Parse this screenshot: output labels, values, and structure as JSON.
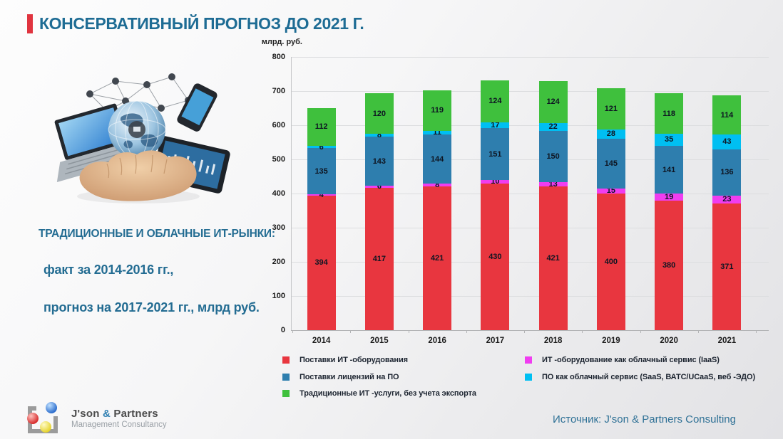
{
  "slide": {
    "title": "КОНСЕРВАТИВНЫЙ ПРОГНОЗ ДО 2021 Г."
  },
  "left_text": {
    "lines": [
      "ТРАДИЦИОННЫЕ И ОБЛАЧНЫЕ ИТ-РЫНКИ:",
      "факт за 2014-2016 гг.,",
      "прогноз на 2017-2021 гг., млрд руб."
    ]
  },
  "chart_data": {
    "type": "bar",
    "stacked": true,
    "unit_label": "млрд. руб.",
    "categories": [
      "2014",
      "2015",
      "2016",
      "2017",
      "2018",
      "2019",
      "2020",
      "2021"
    ],
    "series": [
      {
        "name": "Поставки ИТ -оборудования",
        "color": "#e8363f",
        "values": [
          394,
          417,
          421,
          430,
          421,
          400,
          380,
          371
        ]
      },
      {
        "name": "ИТ -оборудование как облачный сервис (IaaS)",
        "color": "#f03df0",
        "values": [
          4,
          6,
          8,
          10,
          13,
          15,
          19,
          23
        ]
      },
      {
        "name": "Поставки лицензий на ПО",
        "color": "#2e7eae",
        "values": [
          135,
          143,
          144,
          151,
          150,
          145,
          141,
          136
        ]
      },
      {
        "name": "ПО как облачный сервис (SaaS, ВАТС/UCaaS, веб -ЭДО)",
        "color": "#00bff2",
        "values": [
          6,
          8,
          11,
          17,
          22,
          28,
          35,
          43
        ]
      },
      {
        "name": "Традиционные ИТ -услуги, без учета экспорта",
        "color": "#3fc03d",
        "values": [
          112,
          120,
          119,
          124,
          124,
          121,
          118,
          114
        ]
      }
    ],
    "ylim": [
      0,
      800
    ],
    "ytick_step": 100,
    "grid": true,
    "legend_position": "bottom",
    "legend_columns": [
      [
        0,
        2,
        4
      ],
      [
        1,
        3
      ]
    ]
  },
  "footer": {
    "logo": {
      "name_pre": "J'son ",
      "amp": "&",
      "name_post": " Partners",
      "tagline": "Management Consultancy"
    },
    "source": "Источник: J'son & Partners Consulting"
  }
}
